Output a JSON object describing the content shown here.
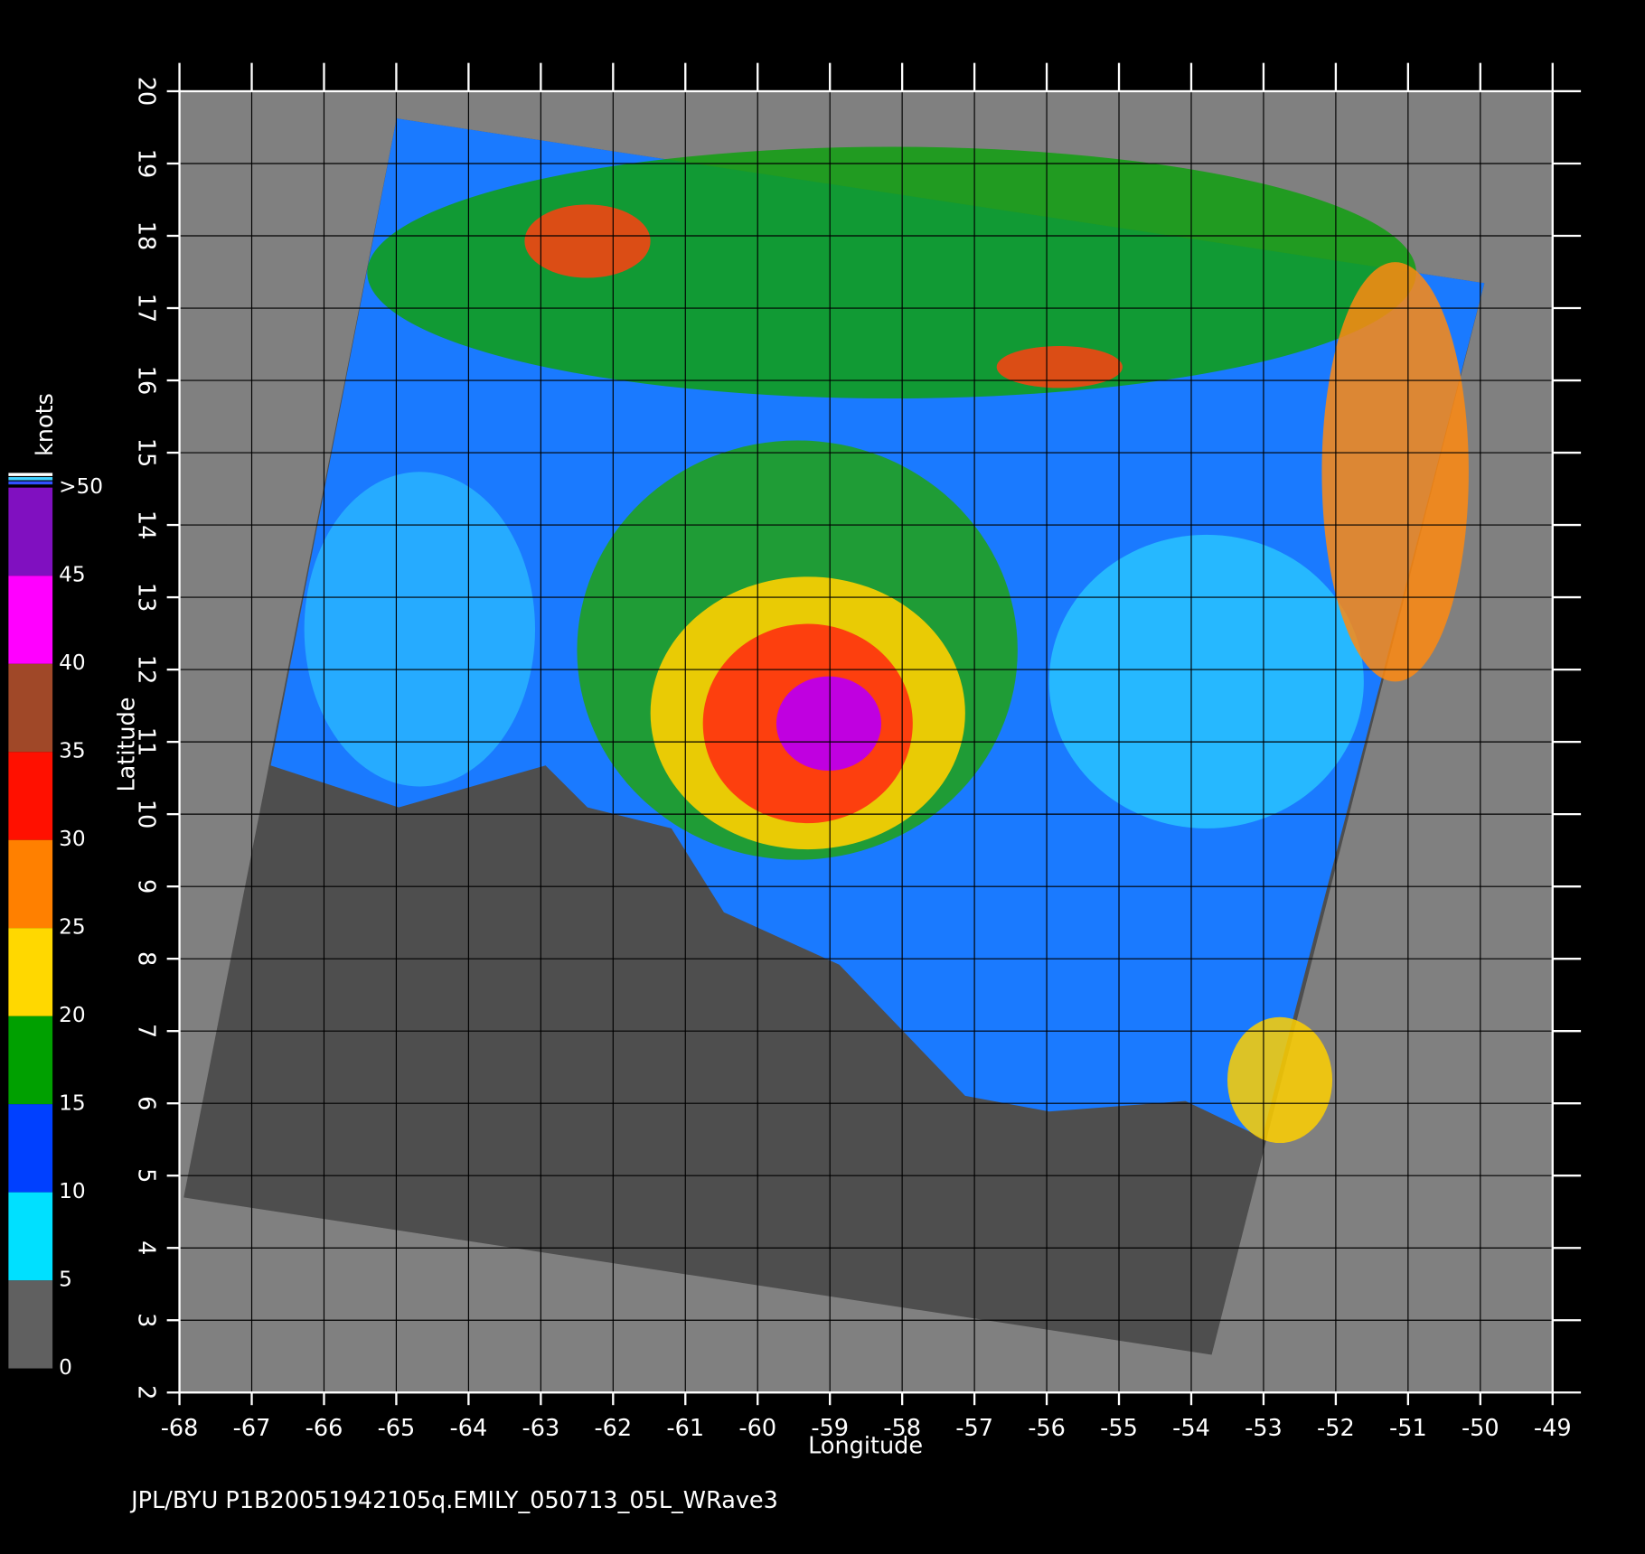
{
  "map": {
    "footer": "JPL/BYU  P1B20051942105q.EMILY_050713_05L_WRave3",
    "x_axis": {
      "label": "Longitude",
      "lim": [
        -68,
        -49
      ],
      "ticks": [
        -68,
        -67,
        -66,
        -65,
        -64,
        -63,
        -62,
        -61,
        -60,
        -59,
        -58,
        -57,
        -56,
        -55,
        -54,
        -53,
        -52,
        -51,
        -50,
        -49
      ]
    },
    "y_axis": {
      "label": "Latitude",
      "lim": [
        2,
        20
      ],
      "ticks": [
        2,
        3,
        4,
        5,
        6,
        7,
        8,
        9,
        10,
        11,
        12,
        13,
        14,
        15,
        16,
        17,
        18,
        19,
        20
      ]
    },
    "grid": true,
    "colorbar": {
      "label": "knots",
      "lim": [
        0,
        50
      ],
      "ticks": [
        0,
        5,
        10,
        15,
        20,
        25,
        30,
        35,
        40,
        45,
        {
          "value": 50,
          "label": ">50"
        }
      ],
      "colors": [
        "#606060",
        "#00e0ff",
        "#0040ff",
        "#00a000",
        "#ffd800",
        "#ff8000",
        "#ff1000",
        "#a04828",
        "#ff00ff",
        "#8010c0"
      ]
    }
  }
}
